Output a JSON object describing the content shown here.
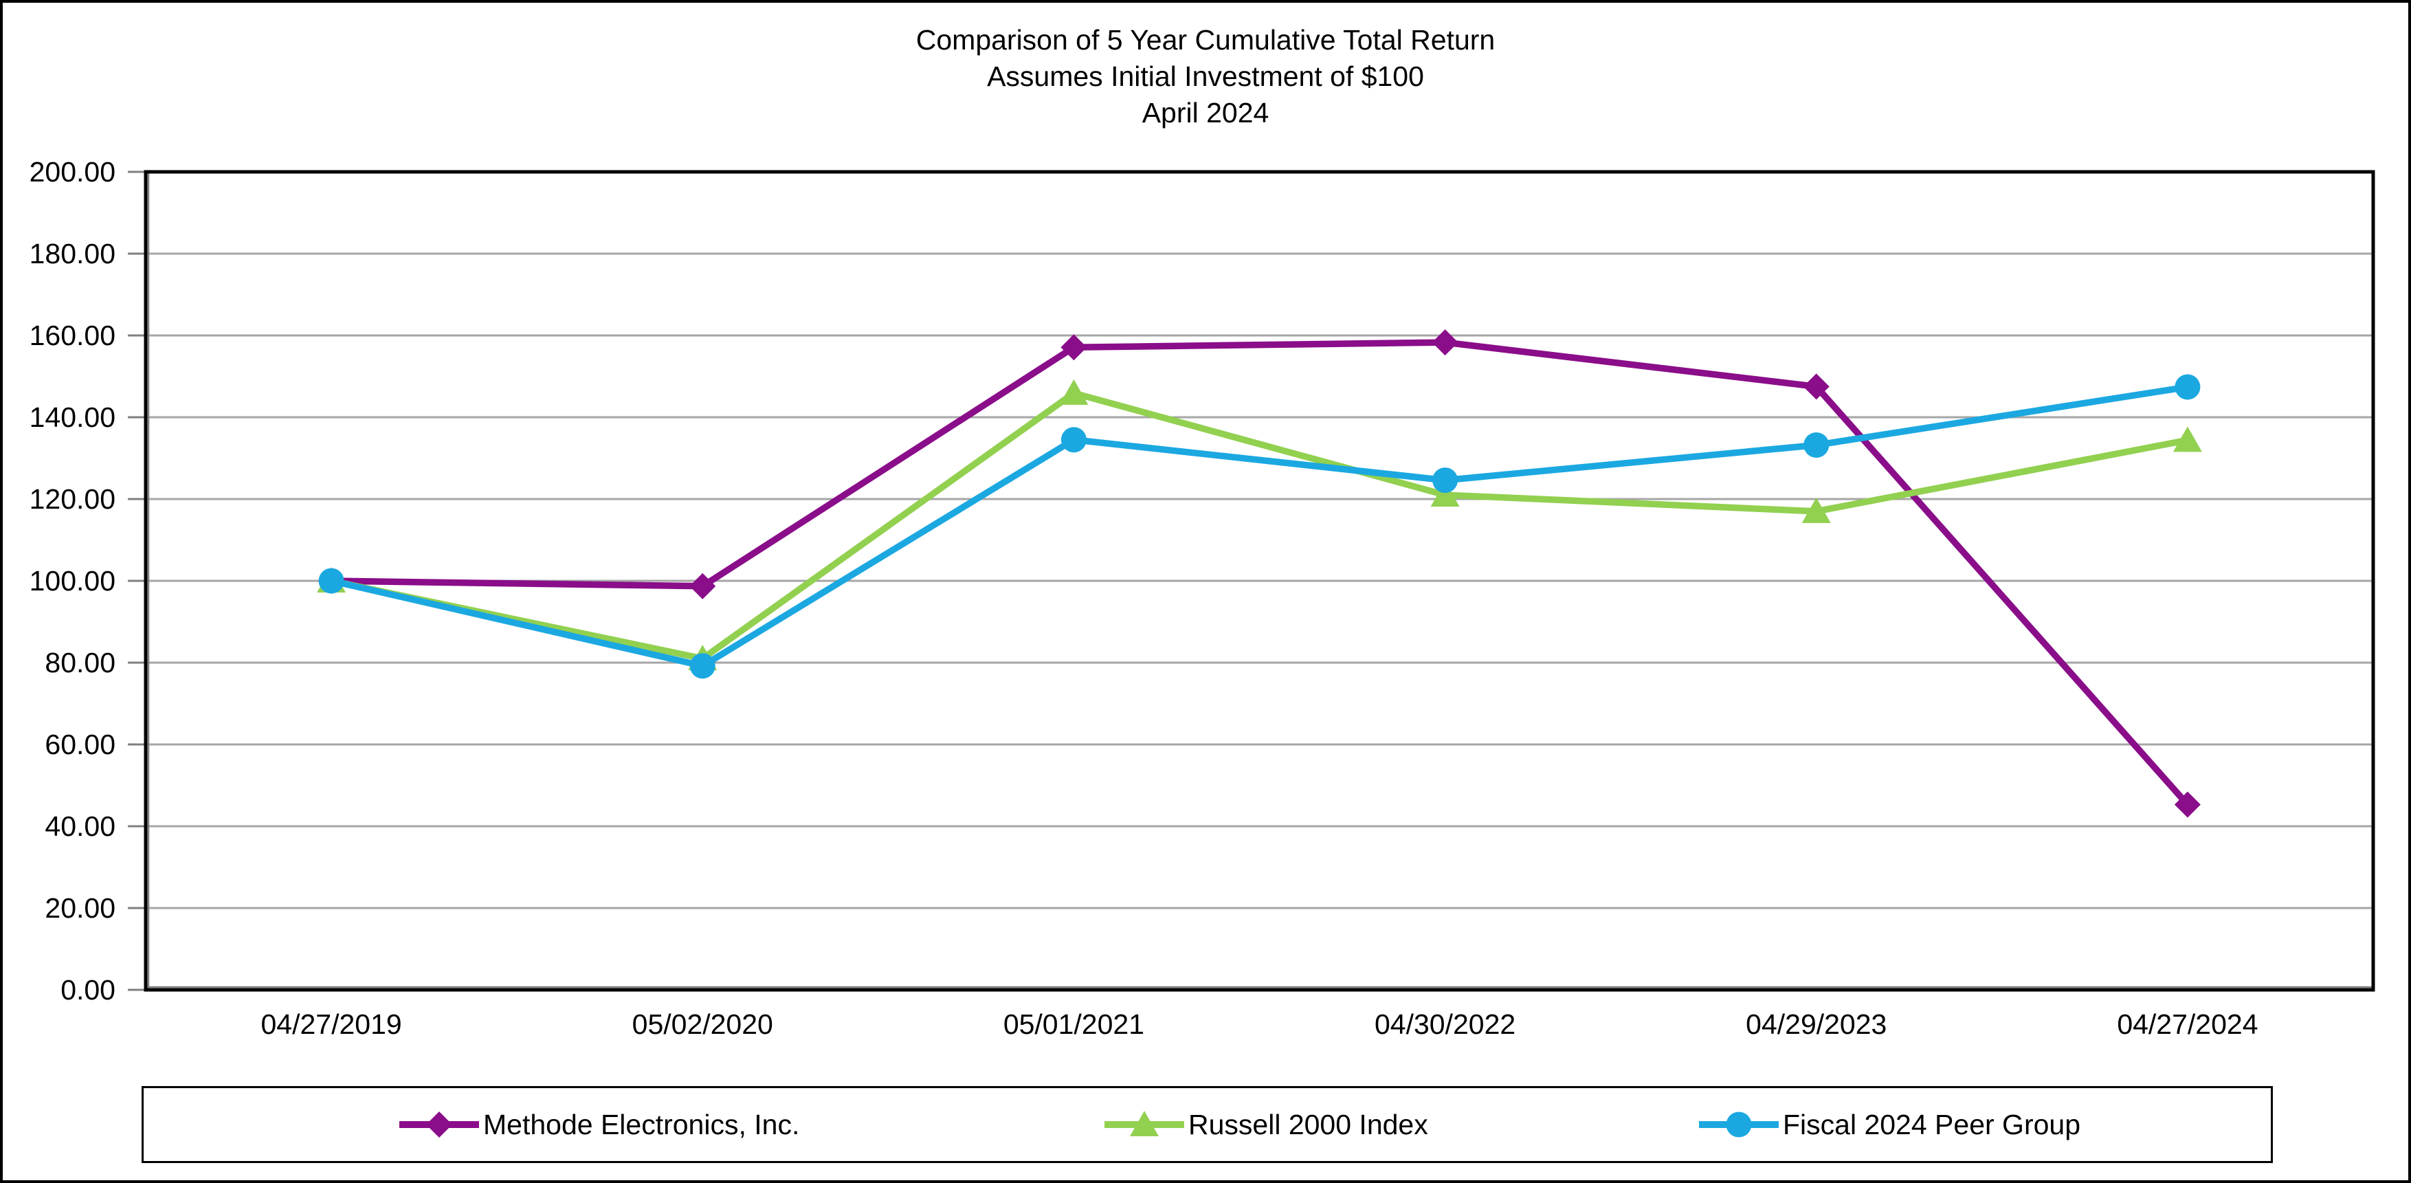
{
  "chart_data": {
    "type": "line",
    "title_lines": [
      "Comparison of 5 Year Cumulative Total Return",
      "Assumes Initial Investment of $100",
      "April 2024"
    ],
    "categories": [
      "04/27/2019",
      "05/02/2020",
      "05/01/2021",
      "04/30/2022",
      "04/29/2023",
      "04/27/2024"
    ],
    "series": [
      {
        "name": "Methode Electronics, Inc.",
        "color": "#8A0D8A",
        "marker": "diamond",
        "values": [
          100.0,
          98.7,
          157.1,
          158.3,
          147.5,
          45.3
        ]
      },
      {
        "name": "Russell 2000 Index",
        "color": "#92D050",
        "marker": "triangle",
        "values": [
          100.0,
          81.0,
          145.9,
          121.0,
          117.0,
          134.4
        ]
      },
      {
        "name": "Fiscal 2024 Peer Group",
        "color": "#1BA8E1",
        "marker": "circle",
        "values": [
          100.0,
          79.2,
          134.5,
          124.6,
          133.2,
          147.4
        ]
      }
    ],
    "y_axis": {
      "min": 0,
      "max": 200,
      "step": 20,
      "tick_labels": [
        "0.00",
        "20.00",
        "40.00",
        "60.00",
        "80.00",
        "100.00",
        "120.00",
        "140.00",
        "160.00",
        "180.00",
        "200.00"
      ]
    },
    "grid": true,
    "legend_position": "bottom",
    "colors": {
      "gridline": "#A6A6A6",
      "axis_border": "#000000",
      "tick": "#7F7F7F",
      "text": "#000000",
      "background": "#FFFFFF"
    }
  }
}
